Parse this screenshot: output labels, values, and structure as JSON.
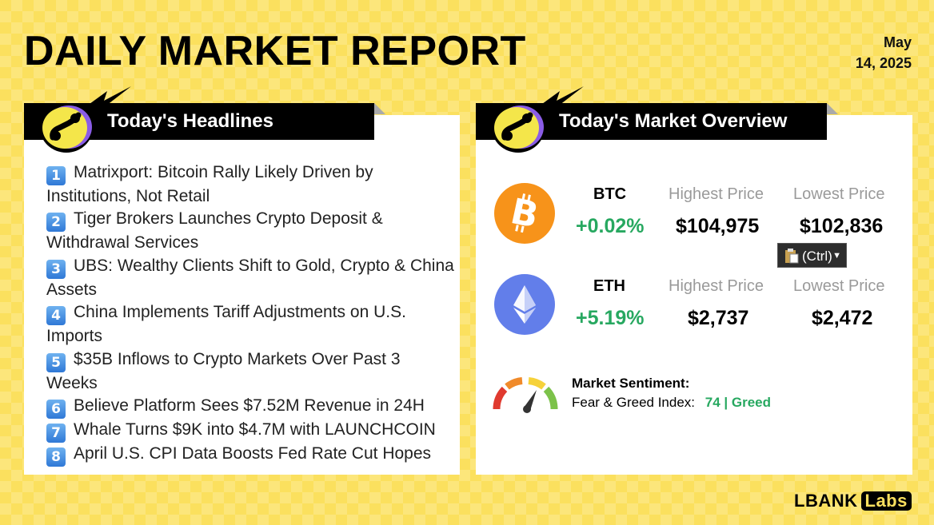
{
  "header": {
    "title": "DAILY MARKET REPORT",
    "date_line1": "May",
    "date_line2": "14, 2025"
  },
  "headlines": {
    "tab_title": "Today's Headlines",
    "items": [
      {
        "num": "1",
        "text": "Matrixport: Bitcoin Rally Likely Driven by Institutions, Not Retail"
      },
      {
        "num": "2",
        "text": "Tiger Brokers Launches Crypto Deposit & Withdrawal Services"
      },
      {
        "num": "3",
        "text": "UBS: Wealthy Clients Shift to Gold, Crypto & China Assets"
      },
      {
        "num": "4",
        "text": "China Implements Tariff Adjustments on U.S. Imports"
      },
      {
        "num": "5",
        "text": "$35B Inflows to Crypto Markets Over Past 3 Weeks"
      },
      {
        "num": "6",
        "text": "Believe Platform Sees $7.52M Revenue in 24H"
      },
      {
        "num": "7",
        "text": "Whale Turns $9K into $4.7M with LAUNCHCOIN"
      },
      {
        "num": "8",
        "text": "April U.S. CPI Data Boosts Fed Rate Cut Hopes"
      }
    ]
  },
  "overview": {
    "tab_title": "Today's Market Overview",
    "btc": {
      "symbol": "BTC",
      "change": "+0.02%",
      "high_label": "Highest Price",
      "high": "$104,975",
      "low_label": "Lowest Price",
      "low": "$102,836"
    },
    "eth": {
      "symbol": "ETH",
      "change": "+5.19%",
      "high_label": "Highest Price",
      "high": "$2,737",
      "low_label": "Lowest Price",
      "low": "$2,472"
    },
    "paste_popup": "(Ctrl)",
    "sentiment": {
      "title": "Market Sentiment:",
      "label": "Fear & Greed Index:",
      "value": "74 | Greed"
    }
  },
  "colors": {
    "background": "#fbe05e",
    "positive": "#27a860",
    "btc": "#f7931a",
    "eth": "#627eea"
  },
  "icons": [
    "lbank-logo-icon",
    "lightning-icon",
    "bitcoin-icon",
    "ethereum-icon",
    "clipboard-icon",
    "gauge-icon"
  ],
  "brand": {
    "name": "LBANK",
    "suffix": "Labs"
  }
}
